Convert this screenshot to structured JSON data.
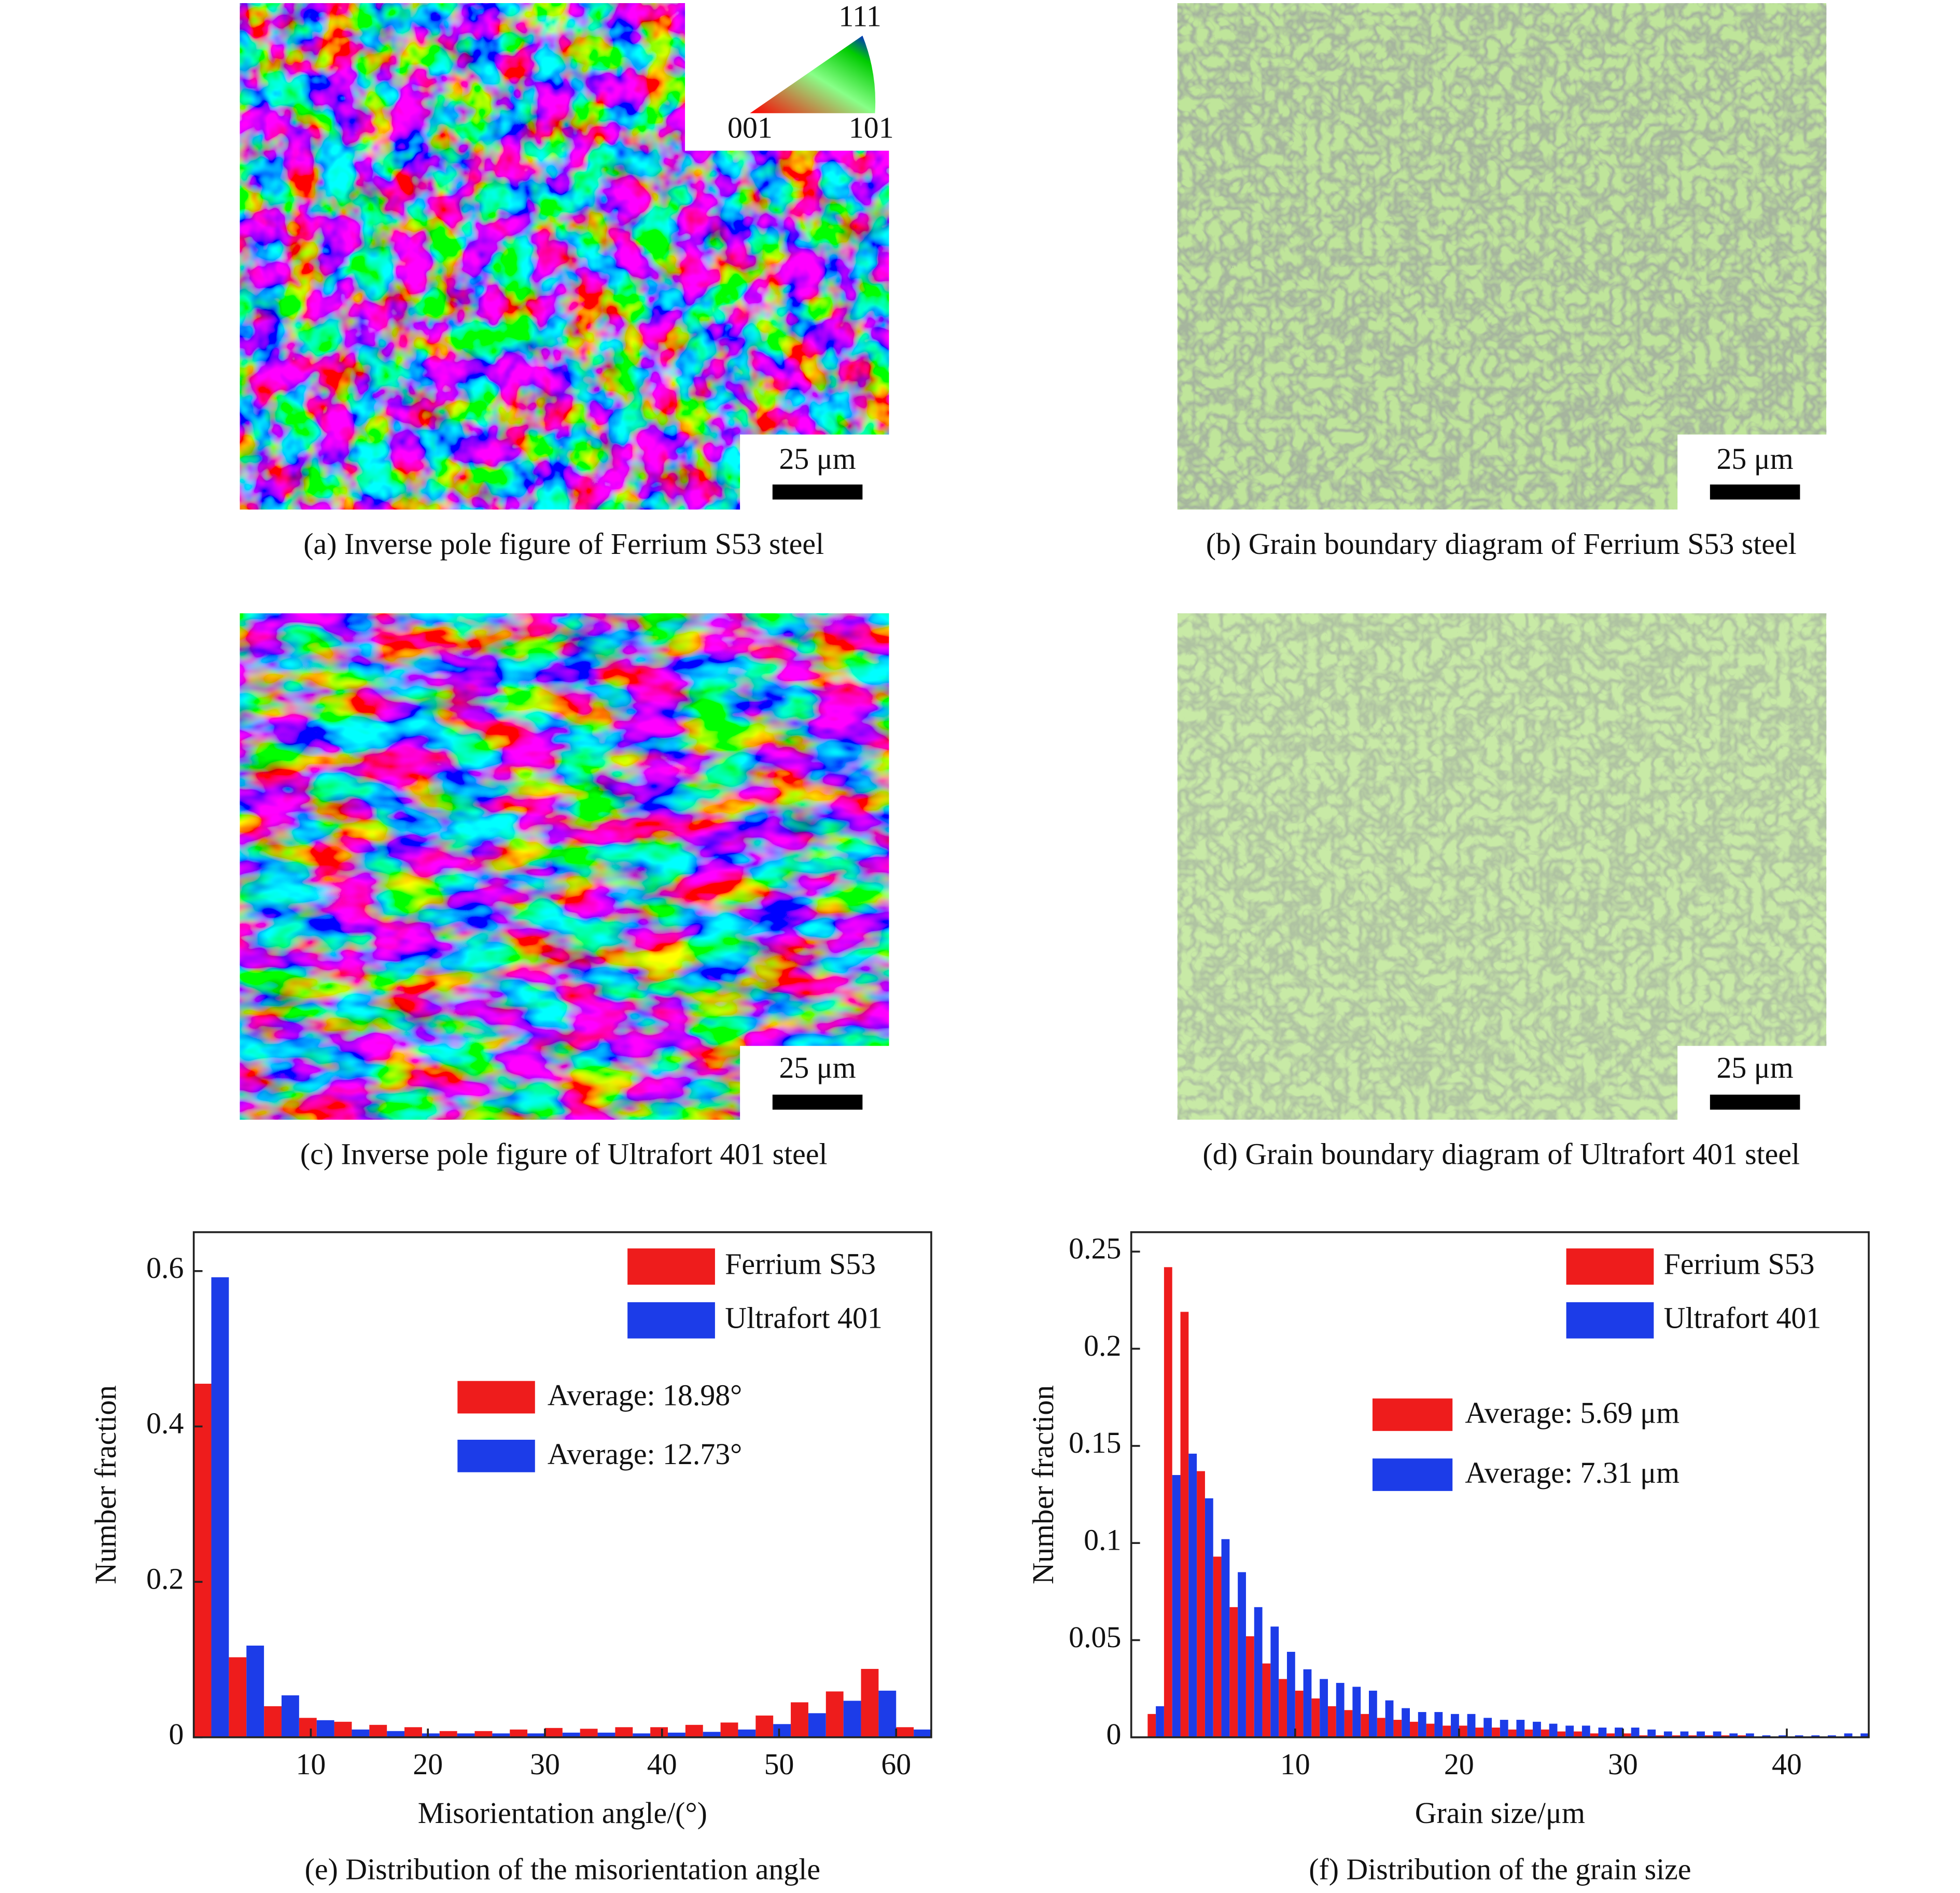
{
  "ipf_key": [
    "111",
    "001",
    "101"
  ],
  "figures": [
    {
      "caption": "(a) Inverse pole figure of Ferrium S53 steel",
      "scale_bar": "25 μm"
    },
    {
      "caption": "(b) Grain boundary diagram of Ferrium S53 steel",
      "scale_bar": "25 μm"
    },
    {
      "caption": "(c) Inverse pole figure of Ultrafort 401 steel",
      "scale_bar": "25 μm"
    },
    {
      "caption": "(d) Grain boundary diagram of Ultrafort 401 steel",
      "scale_bar": "25 μm"
    }
  ],
  "chart_data": [
    {
      "type": "histogram",
      "caption": "(e) Distribution of the misorientation angle",
      "x_label": "Misorientation angle/(°)",
      "y_label": "Number fraction",
      "bins": [
        0,
        3,
        6,
        9,
        12,
        15,
        18,
        21,
        24,
        27,
        30,
        33,
        36,
        39,
        42,
        45,
        48,
        51,
        54,
        57,
        60,
        63
      ],
      "series": [
        {
          "name": "Ferrium S53",
          "color": "#ee1c1c",
          "values": [
            0.455,
            0.103,
            0.04,
            0.025,
            0.02,
            0.016,
            0.013,
            0.008,
            0.008,
            0.01,
            0.012,
            0.011,
            0.013,
            0.013,
            0.016,
            0.019,
            0.028,
            0.045,
            0.059,
            0.088,
            0.013
          ]
        },
        {
          "name": "Ultrafort 401",
          "color": "#1c3ce8",
          "values": [
            0.592,
            0.118,
            0.054,
            0.022,
            0.01,
            0.008,
            0.005,
            0.005,
            0.005,
            0.005,
            0.006,
            0.006,
            0.005,
            0.006,
            0.007,
            0.01,
            0.017,
            0.031,
            0.047,
            0.06,
            0.01
          ]
        }
      ],
      "annotations": [
        {
          "text": "Average: 18.98°",
          "color": "#ee1c1c"
        },
        {
          "text": "Average: 12.73°",
          "color": "#1c3ce8"
        }
      ],
      "xlim": [
        0,
        63
      ],
      "xticks": [
        10,
        20,
        30,
        40,
        50,
        60
      ],
      "ylim": [
        0,
        0.65
      ],
      "yticks": [
        0,
        0.2,
        0.4,
        0.6
      ],
      "legend": "upper right"
    },
    {
      "type": "histogram",
      "caption": "(f) Distribution of the grain size",
      "x_label": "Grain size/μm",
      "y_label": "Number fraction",
      "bins": [
        1,
        2,
        3,
        4,
        5,
        6,
        7,
        8,
        9,
        10,
        11,
        12,
        13,
        14,
        15,
        16,
        17,
        18,
        19,
        20,
        21,
        22,
        23,
        24,
        25,
        26,
        27,
        28,
        29,
        30,
        31,
        32,
        33,
        34,
        35,
        36,
        37,
        38,
        39,
        40,
        41,
        42,
        43,
        44,
        45
      ],
      "series": [
        {
          "name": "Ferrium S53",
          "color": "#ee1c1c",
          "values": [
            0.012,
            0.242,
            0.219,
            0.137,
            0.093,
            0.067,
            0.052,
            0.038,
            0.03,
            0.024,
            0.02,
            0.016,
            0.014,
            0.012,
            0.01,
            0.009,
            0.008,
            0.007,
            0.006,
            0.006,
            0.005,
            0.005,
            0.004,
            0.004,
            0.004,
            0.003,
            0.003,
            0.002,
            0.002,
            0.002,
            0.001,
            0.001,
            0.001,
            0.001,
            0.001,
            0.001,
            0.001,
            0.0,
            0.0,
            0.0,
            0.0,
            0.0,
            0.0,
            0.0
          ]
        },
        {
          "name": "Ultrafort 401",
          "color": "#1c3ce8",
          "values": [
            0.016,
            0.135,
            0.146,
            0.123,
            0.102,
            0.085,
            0.067,
            0.057,
            0.044,
            0.035,
            0.03,
            0.028,
            0.026,
            0.024,
            0.019,
            0.015,
            0.013,
            0.013,
            0.012,
            0.012,
            0.01,
            0.009,
            0.009,
            0.008,
            0.007,
            0.006,
            0.006,
            0.005,
            0.005,
            0.005,
            0.004,
            0.003,
            0.003,
            0.003,
            0.003,
            0.002,
            0.002,
            0.001,
            0.001,
            0.001,
            0.001,
            0.001,
            0.002,
            0.002
          ]
        }
      ],
      "annotations": [
        {
          "text": "Average: 5.69 μm",
          "color": "#ee1c1c"
        },
        {
          "text": "Average: 7.31 μm",
          "color": "#1c3ce8"
        }
      ],
      "xlim": [
        0,
        45
      ],
      "xticks": [
        10,
        20,
        30,
        40
      ],
      "ylim": [
        0,
        0.26
      ],
      "yticks": [
        0,
        0.05,
        0.1,
        0.15,
        0.2,
        0.25
      ],
      "legend": "upper right"
    }
  ]
}
